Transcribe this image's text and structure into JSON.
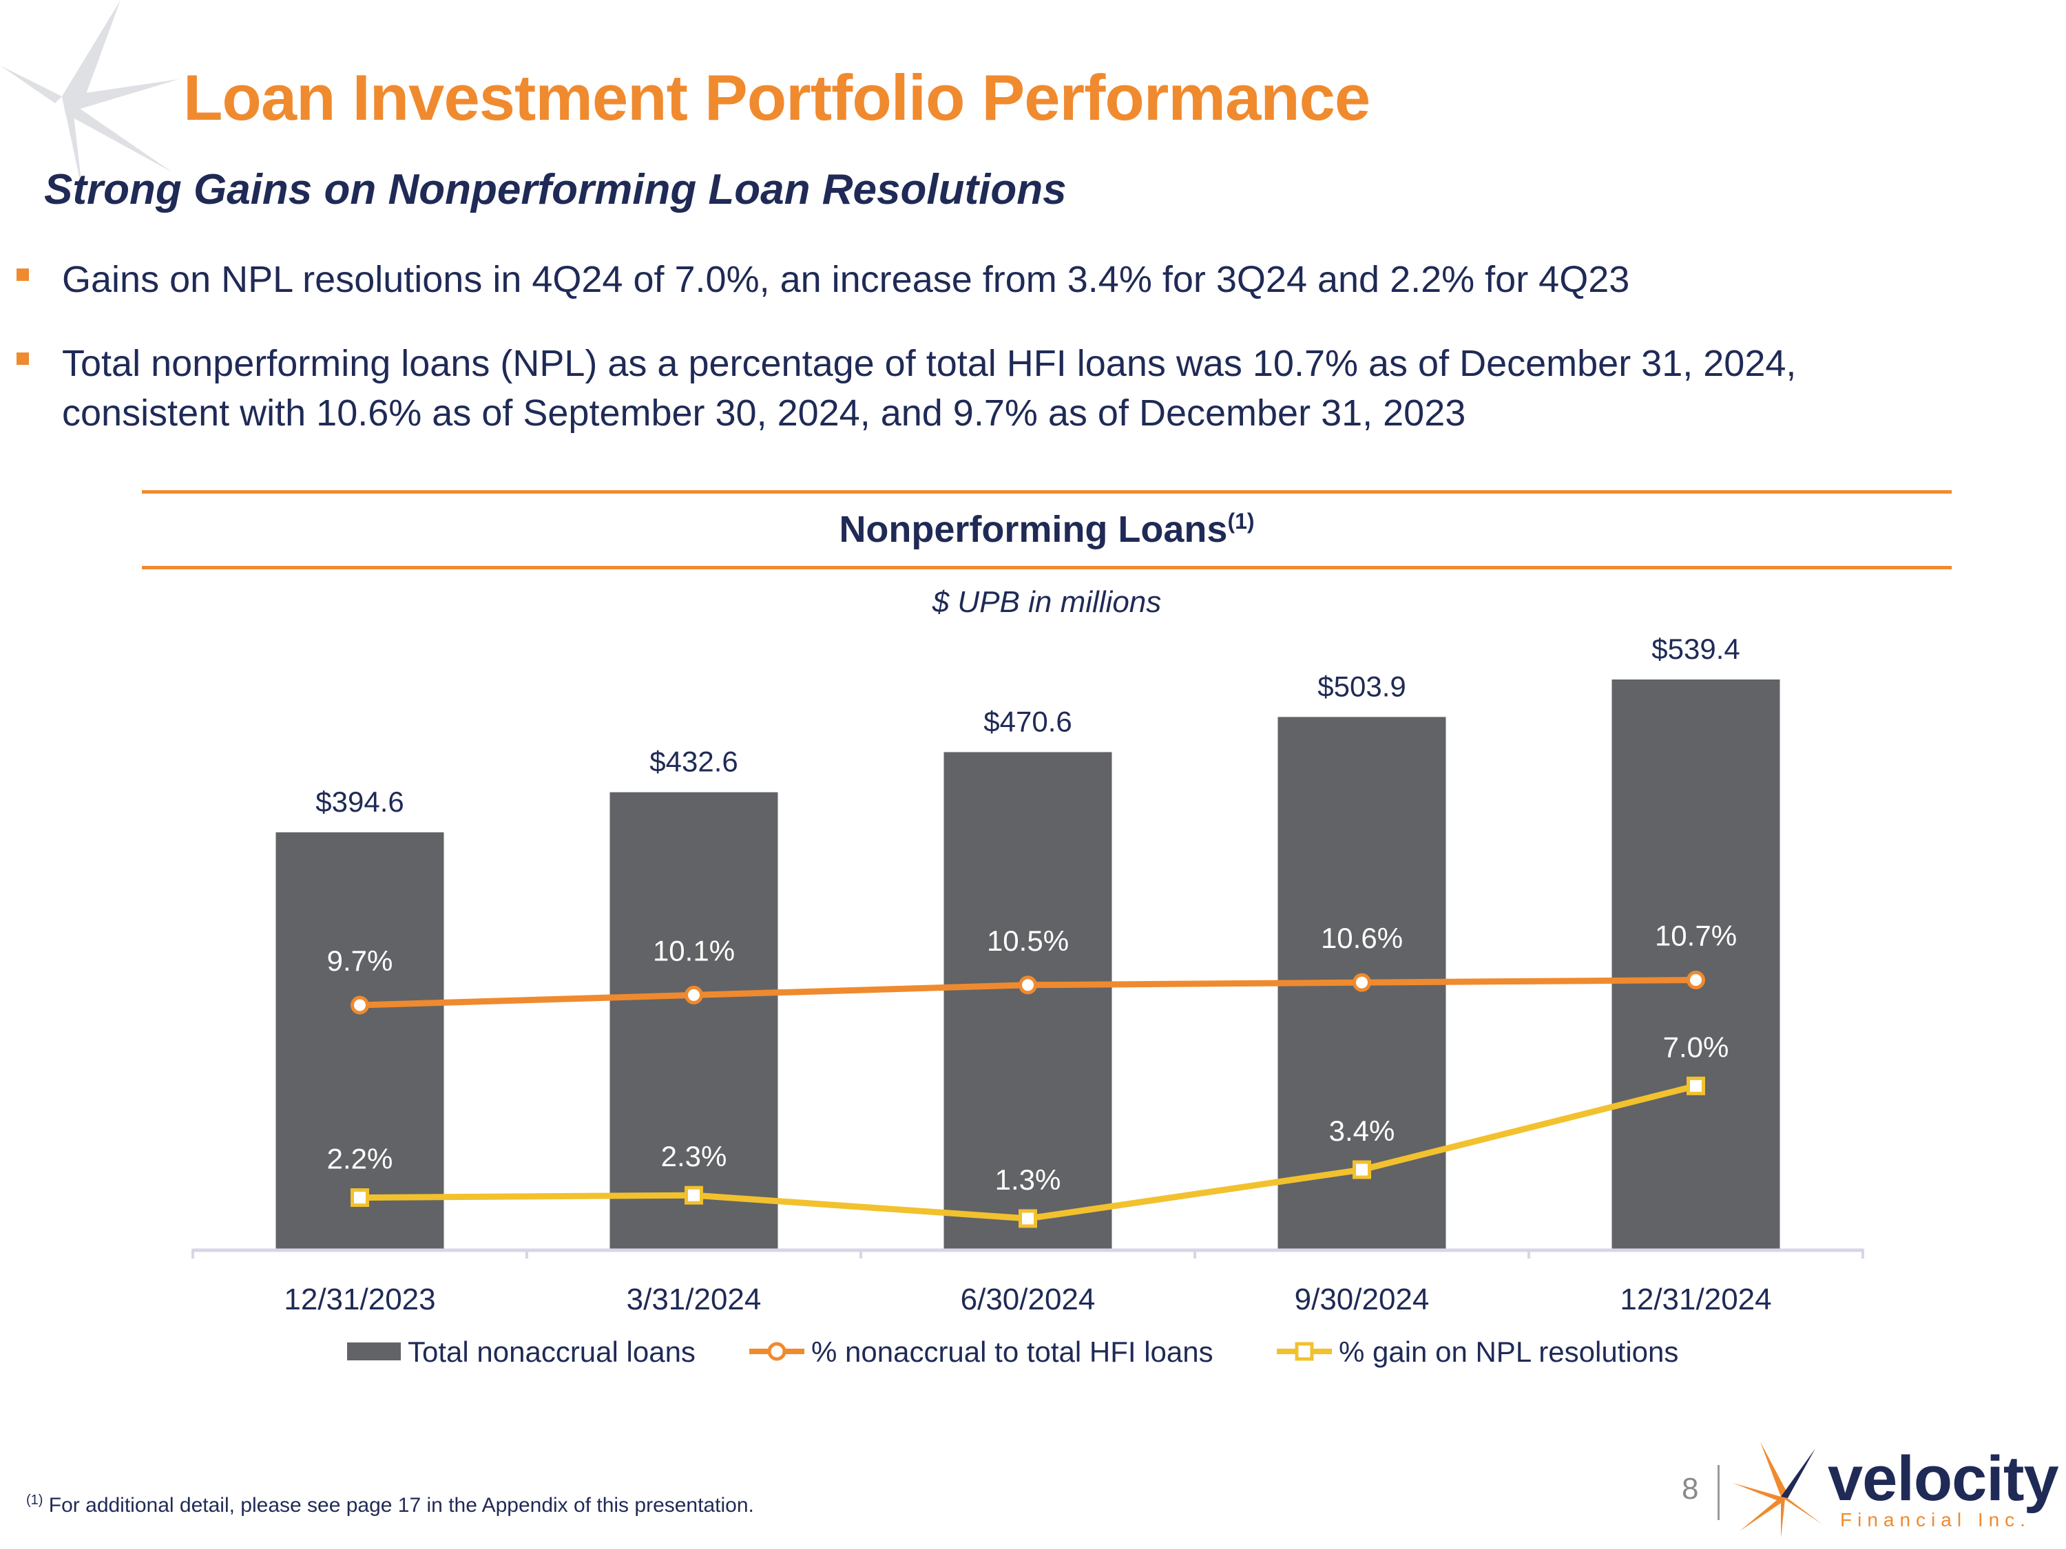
{
  "slide": {
    "title": "Loan Investment Portfolio Performance",
    "subtitle": "Strong Gains on Nonperforming Loan Resolutions",
    "bullets": [
      [
        "Gains on NPL resolutions in 4Q24 of 7.0%, an increase from 3.4% for 3Q24 and 2.2% for 4Q23"
      ],
      [
        "Total nonperforming loans (NPL) as a percentage of total HFI loans was 10.7% as of December 31, 2024,",
        "consistent with 10.6% as of September 30, 2024, and 9.7% as of December 31, 2023"
      ]
    ],
    "footnote_marker": "(1)",
    "footnote": "For additional detail, please see page 17 in the Appendix of this presentation.",
    "page_number": "8",
    "logo": {
      "word": "velocity",
      "sub": "Financial Inc."
    },
    "colors": {
      "orange": "#f08a2e",
      "navy": "#1f2a56",
      "bar": "#626366",
      "yellow": "#f2c12e"
    }
  },
  "chart_data": {
    "type": "bar",
    "title": "Nonperforming Loans",
    "title_marker": "(1)",
    "subtitle": "$ UPB in millions",
    "categories": [
      "12/31/2023",
      "3/31/2024",
      "6/30/2024",
      "9/30/2024",
      "12/31/2024"
    ],
    "series": [
      {
        "name": "Total nonaccrual loans",
        "kind": "bar",
        "values": [
          394.6,
          432.6,
          470.6,
          503.9,
          539.4
        ],
        "labels": [
          "$394.6",
          "$432.6",
          "$470.6",
          "$503.9",
          "$539.4"
        ]
      },
      {
        "name": "% nonaccrual to total HFI loans",
        "kind": "line",
        "marker": "circle",
        "values": [
          9.7,
          10.1,
          10.5,
          10.6,
          10.7
        ],
        "labels": [
          "9.7%",
          "10.1%",
          "10.5%",
          "10.6%",
          "10.7%"
        ]
      },
      {
        "name": "% gain on NPL resolutions",
        "kind": "line",
        "marker": "square",
        "values": [
          2.2,
          2.3,
          1.3,
          3.4,
          7.0
        ],
        "labels": [
          "2.2%",
          "2.3%",
          "1.3%",
          "3.4%",
          "7.0%"
        ]
      }
    ],
    "legend": "bottom",
    "grid": false
  }
}
